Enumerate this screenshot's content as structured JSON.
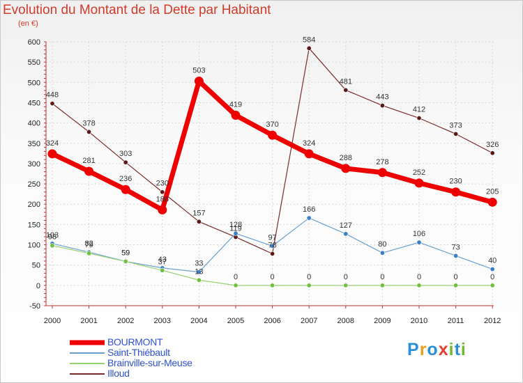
{
  "header": {
    "title": "Evolution du Montant de la Dette par Habitant",
    "subtitle": "(en €)"
  },
  "brand": {
    "text": "Proxiti",
    "colors": [
      "#2b8fd6",
      "#e8a020",
      "#2b8fd6",
      "#e84030",
      "#70b830",
      "#2b8fd6",
      "#70b830"
    ]
  },
  "chart_data": {
    "type": "line",
    "title": "Evolution du Montant de la Dette par Habitant",
    "subtitle": "(en €)",
    "xlabel": "",
    "ylabel": "",
    "ylim": [
      -50,
      600
    ],
    "yticks": [
      -50,
      0,
      50,
      100,
      150,
      200,
      250,
      300,
      350,
      400,
      450,
      500,
      550,
      600
    ],
    "grid": true,
    "legend_position": "bottom-left",
    "categories": [
      "2000",
      "2001",
      "2002",
      "2003",
      "2004",
      "2005",
      "2006",
      "2007",
      "2008",
      "2009",
      "2010",
      "2011",
      "2012"
    ],
    "series": [
      {
        "name": "Illoud",
        "color": "#7a2a2a",
        "point_color": "#5a1a1a",
        "width": 1.2,
        "marker": 3.2,
        "values": [
          448,
          378,
          303,
          230,
          157,
          119,
          78,
          584,
          481,
          443,
          412,
          373,
          326
        ]
      },
      {
        "name": "Saint-Thiébault",
        "color": "#6aa0d0",
        "point_color": "#3a80c8",
        "width": 1.2,
        "marker": 3.2,
        "values": [
          103,
          82,
          59,
          43,
          33,
          128,
          97,
          166,
          127,
          80,
          106,
          73,
          40
        ]
      },
      {
        "name": "Brainville-sur-Meuse",
        "color": "#98d070",
        "point_color": "#70c040",
        "width": 1.2,
        "marker": 3.2,
        "values": [
          98,
          79,
          59,
          37,
          13,
          0,
          0,
          0,
          0,
          0,
          0,
          0,
          0
        ]
      },
      {
        "name": "BOURMONT",
        "color": "#ee0000",
        "point_color": "#ee0000",
        "width": 7,
        "marker": 6.5,
        "values": [
          324,
          281,
          236,
          186,
          503,
          419,
          370,
          324,
          288,
          278,
          252,
          230,
          205
        ]
      }
    ]
  }
}
